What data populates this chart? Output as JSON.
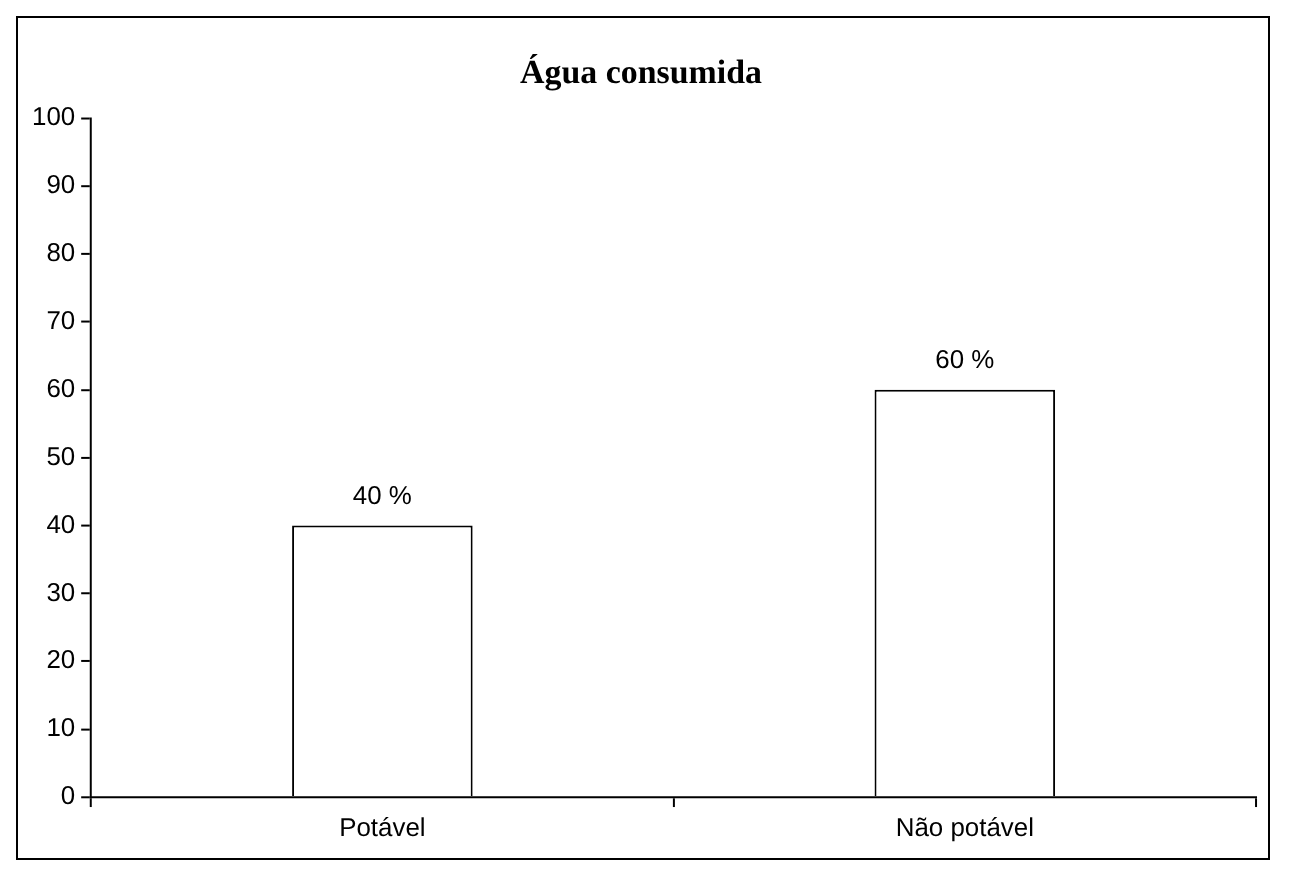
{
  "chart_data": {
    "type": "bar",
    "title": "Água consumida",
    "categories": [
      "Potável",
      "Não potável"
    ],
    "values": [
      40,
      60
    ],
    "value_labels": [
      "40 %",
      "60 %"
    ],
    "color": "#ffffff",
    "ylim": [
      0,
      100
    ],
    "yticks": [
      0,
      10,
      20,
      30,
      40,
      50,
      60,
      70,
      80,
      90,
      100
    ],
    "grid": false,
    "legend": false
  }
}
